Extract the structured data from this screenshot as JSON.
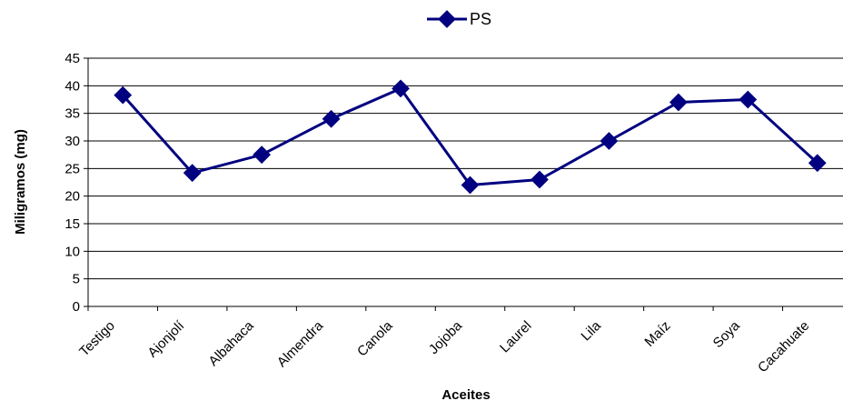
{
  "chart_data": {
    "type": "line",
    "title": "",
    "xlabel": "Aceites",
    "ylabel": "Miligramos (mg)",
    "categories": [
      "Testigo",
      "Ajonjolí",
      "Albahaca",
      "Almendra",
      "Canola",
      "Jojoba",
      "Laurel",
      "Lila",
      "Maíz",
      "Soya",
      "Cacahuate"
    ],
    "series": [
      {
        "name": "PS",
        "values": [
          38.3,
          24.2,
          27.5,
          34.0,
          39.5,
          22.0,
          23.0,
          30.0,
          37.0,
          37.5,
          26.0
        ]
      }
    ],
    "ylim": [
      0,
      45
    ],
    "yticks": [
      0,
      5,
      10,
      15,
      20,
      25,
      30,
      35,
      40,
      45
    ],
    "grid": true,
    "legend": "top-center",
    "colors": {
      "series": "#000080",
      "grid": "#000000",
      "axis": "#000000"
    }
  }
}
